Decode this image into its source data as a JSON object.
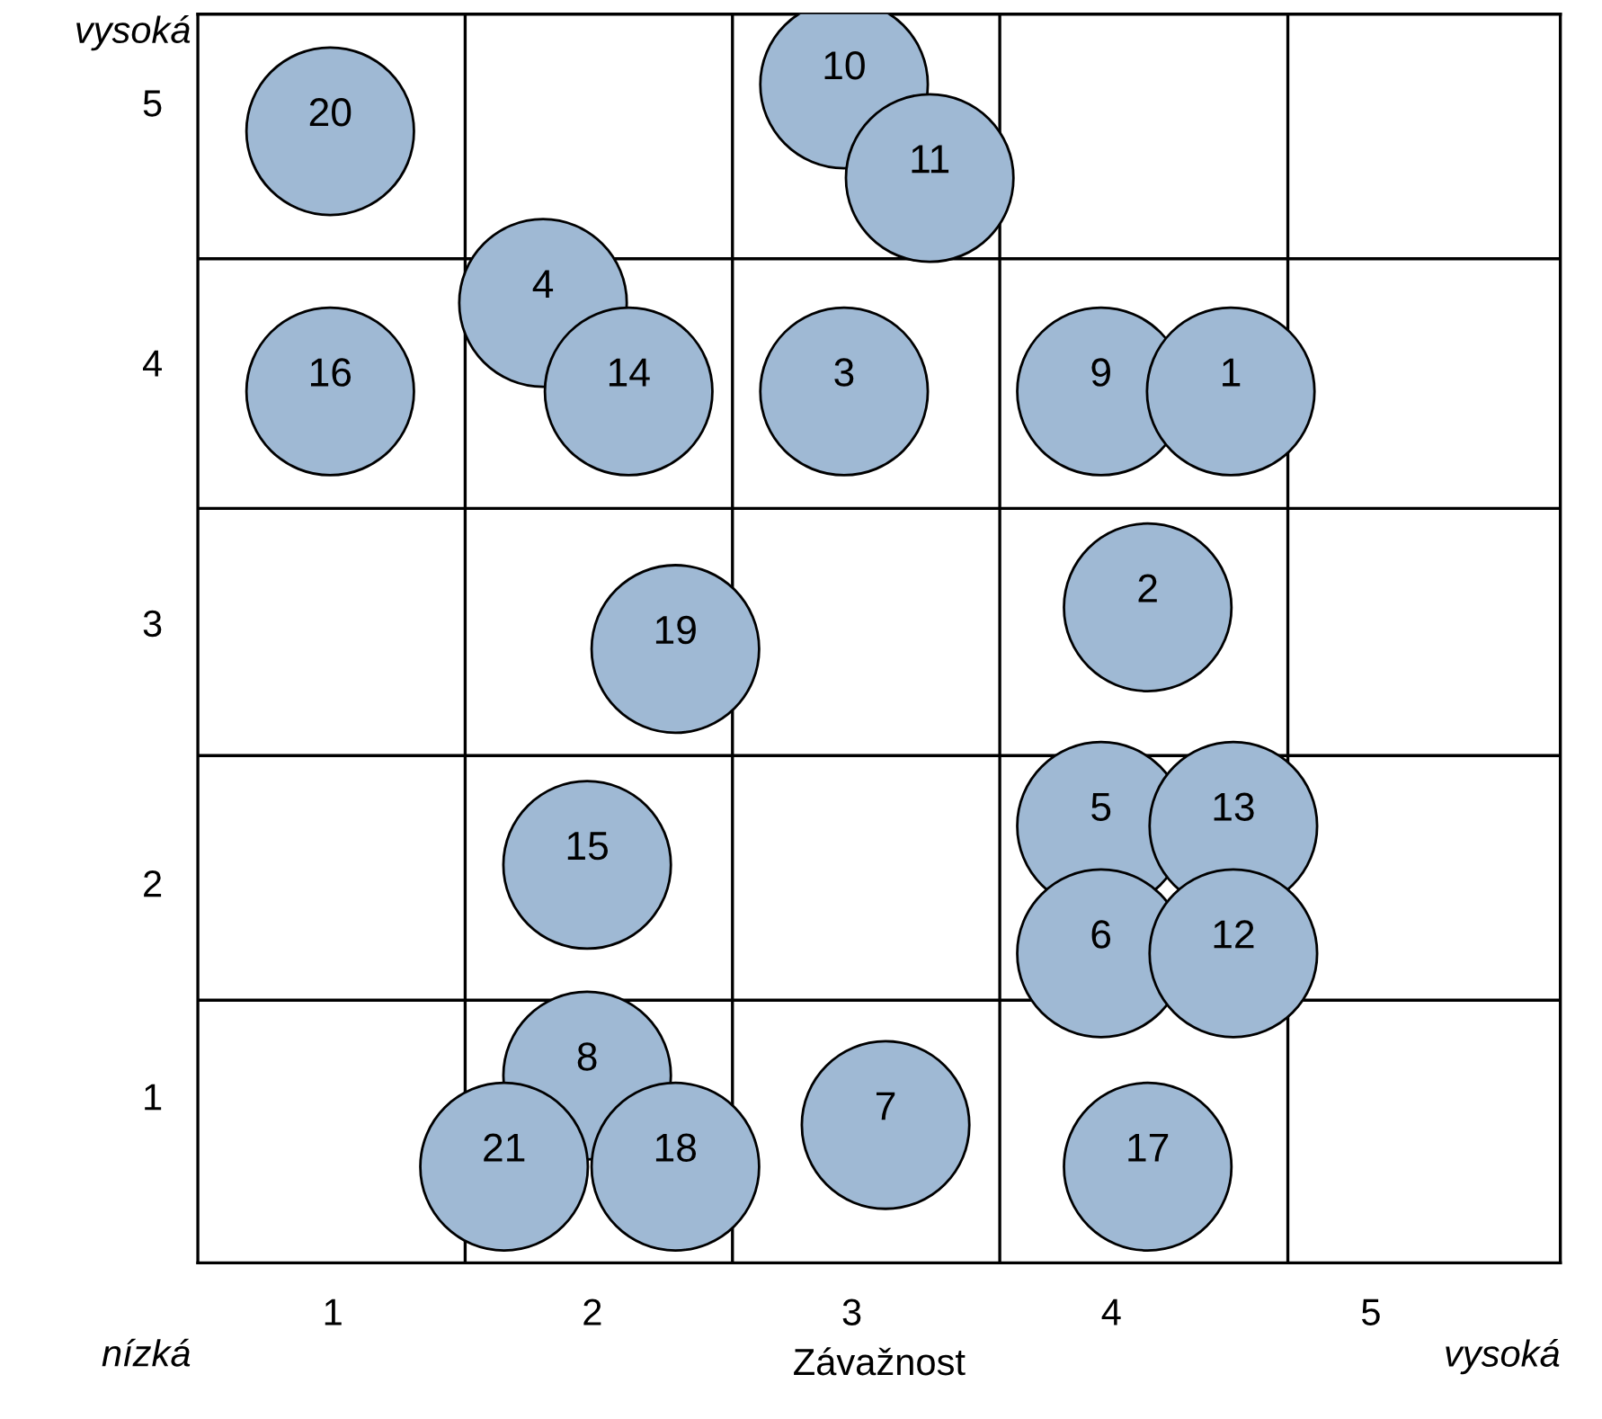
{
  "chart_data": {
    "type": "scatter",
    "xlabel": "Závažnost",
    "x": [
      0.99,
      2.97,
      3.3,
      1.81,
      0.99,
      2.14,
      2.97,
      3.96,
      4.46,
      4.14,
      2.32,
      1.98,
      3.96,
      4.47,
      3.96,
      4.47,
      1.98,
      3.13,
      1.66,
      2.32,
      4.14
    ],
    "series": [
      {
        "color": "#9fb9d4",
        "values": [
          4.89,
          5.07,
          4.71,
          4.23,
          3.89,
          3.89,
          3.89,
          3.89,
          3.89,
          3.06,
          2.9,
          2.07,
          2.22,
          2.22,
          1.73,
          1.73,
          1.26,
          1.07,
          0.91,
          0.91,
          0.91
        ]
      }
    ],
    "marker": "circle",
    "xlim": [
      0.48,
      5.73
    ],
    "ylim": [
      0.54,
      5.34
    ],
    "xticks": [
      1,
      2,
      3,
      4,
      5
    ],
    "yticks": [
      {
        "value": 1.18,
        "label": "1"
      },
      2,
      3,
      4,
      5
    ],
    "grid": false,
    "legend": false,
    "ref_lines": [
      {
        "axis": "x",
        "value": 1.51,
        "color": "#000000"
      },
      {
        "axis": "x",
        "value": 2.54,
        "color": "#000000"
      },
      {
        "axis": "x",
        "value": 3.57,
        "color": "#000000"
      },
      {
        "axis": "x",
        "value": 4.68,
        "color": "#000000"
      },
      {
        "axis": "y",
        "value": 4.4,
        "color": "#000000"
      },
      {
        "axis": "y",
        "value": 3.44,
        "color": "#000000"
      },
      {
        "axis": "y",
        "value": 2.49,
        "color": "#000000"
      },
      {
        "axis": "y",
        "value": 1.55,
        "color": "#000000"
      }
    ],
    "annotations": [
      {
        "text": "20",
        "x": 0.99,
        "y": 4.89
      },
      {
        "text": "10",
        "x": 2.97,
        "y": 5.07
      },
      {
        "text": "11",
        "x": 3.3,
        "y": 4.71
      },
      {
        "text": "4",
        "x": 1.81,
        "y": 4.23
      },
      {
        "text": "16",
        "x": 0.99,
        "y": 3.89
      },
      {
        "text": "14",
        "x": 2.14,
        "y": 3.89
      },
      {
        "text": "3",
        "x": 2.97,
        "y": 3.89
      },
      {
        "text": "9",
        "x": 3.96,
        "y": 3.89
      },
      {
        "text": "1",
        "x": 4.46,
        "y": 3.89
      },
      {
        "text": "2",
        "x": 4.14,
        "y": 3.06
      },
      {
        "text": "19",
        "x": 2.32,
        "y": 2.9
      },
      {
        "text": "15",
        "x": 1.98,
        "y": 2.07
      },
      {
        "text": "5",
        "x": 3.96,
        "y": 2.22
      },
      {
        "text": "13",
        "x": 4.47,
        "y": 2.22
      },
      {
        "text": "6",
        "x": 3.96,
        "y": 1.73
      },
      {
        "text": "12",
        "x": 4.47,
        "y": 1.73
      },
      {
        "text": "8",
        "x": 1.98,
        "y": 1.26
      },
      {
        "text": "7",
        "x": 3.13,
        "y": 1.07
      },
      {
        "text": "21",
        "x": 1.66,
        "y": 0.91
      },
      {
        "text": "18",
        "x": 2.32,
        "y": 0.91
      },
      {
        "text": "17",
        "x": 4.14,
        "y": 0.91
      },
      "vysoká",
      "nízká",
      "vysoká"
    ]
  }
}
